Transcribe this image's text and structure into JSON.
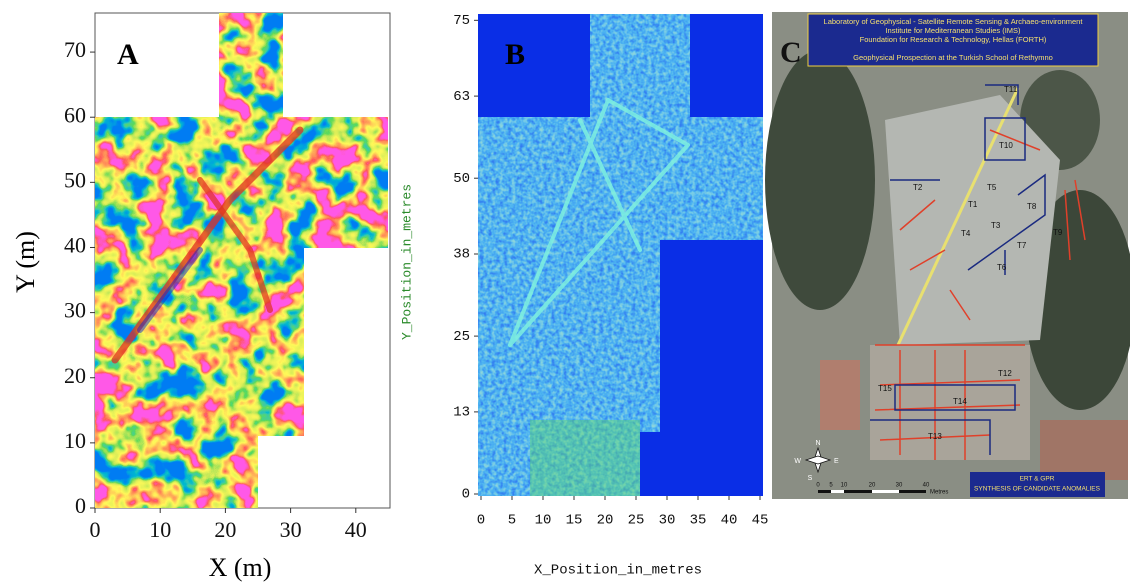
{
  "panel_a": {
    "label": "A",
    "x_label": "X (m)",
    "y_label": "Y (m)",
    "right_label": "Y_Position_in_metres",
    "xlim": [
      0,
      45
    ],
    "ylim": [
      0,
      76
    ],
    "xticks": [
      0,
      10,
      20,
      30,
      40
    ],
    "yticks": [
      0,
      10,
      20,
      30,
      40,
      50,
      60,
      70
    ]
  },
  "panel_b": {
    "label": "B",
    "x_label": "X_Position_in_metres",
    "xlim": [
      0,
      45
    ],
    "ylim": [
      0,
      76
    ],
    "xticks": [
      0,
      5,
      10,
      15,
      20,
      25,
      30,
      35,
      40,
      45
    ],
    "yticks": [
      0,
      13,
      25,
      38,
      50,
      63,
      75
    ]
  },
  "panel_c": {
    "label": "C",
    "header": [
      "Laboratory of Geophysical - Satellite Remote Sensing & Archaeo-environment",
      "Institute for Mediterranean Studies (IMS)",
      "Foundation for Research & Technology, Hellas (FORTH)",
      "Geophysical Prospection at the Turkish School of Rethymno"
    ],
    "trenches": [
      "T1",
      "T2",
      "T3",
      "T4",
      "T5",
      "T6",
      "T7",
      "T8",
      "T9",
      "T10",
      "T11",
      "T12",
      "T13",
      "T14",
      "T15"
    ],
    "legend": [
      "ERT & GPR",
      "SYNTHESIS OF CANDIDATE ANOMALIES"
    ],
    "scale": [
      "0",
      "5",
      "10",
      "20",
      "30",
      "40",
      "Metres"
    ],
    "compass": [
      "N",
      "E",
      "S",
      "W"
    ]
  }
}
